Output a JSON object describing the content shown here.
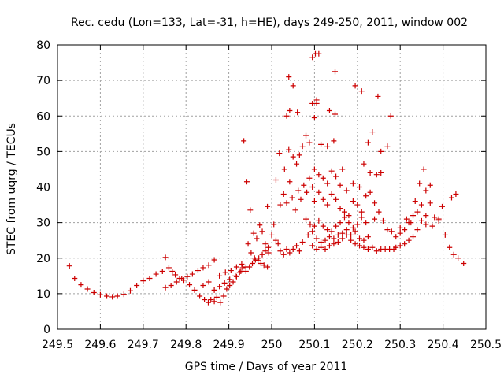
{
  "chart_data": {
    "type": "scatter",
    "title": "Rec. cedu (Lon=133, Lat=-31, h=HE), days 249-250, 2011, window 002",
    "xlabel": "GPS time / Days of year 2011",
    "ylabel": "STEC from uqrg / TECUs",
    "xlim": [
      249.5,
      250.5
    ],
    "ylim": [
      0,
      80
    ],
    "xticks": [
      "249.5",
      "249.6",
      "249.7",
      "249.8",
      "249.9",
      "250",
      "250.1",
      "250.2",
      "250.3",
      "250.4",
      "250.5"
    ],
    "yticks": [
      "0",
      "10",
      "20",
      "30",
      "40",
      "50",
      "60",
      "70",
      "80"
    ],
    "grid": true,
    "marker": "+",
    "color": "#cc0000",
    "points": [
      [
        249.528,
        17.8
      ],
      [
        249.54,
        14.3
      ],
      [
        249.555,
        12.5
      ],
      [
        249.57,
        11.3
      ],
      [
        249.585,
        10.3
      ],
      [
        249.6,
        9.7
      ],
      [
        249.615,
        9.3
      ],
      [
        249.628,
        9.1
      ],
      [
        249.64,
        9.3
      ],
      [
        249.655,
        9.8
      ],
      [
        249.67,
        10.8
      ],
      [
        249.685,
        12.3
      ],
      [
        249.7,
        13.6
      ],
      [
        249.715,
        14.3
      ],
      [
        249.73,
        15.5
      ],
      [
        249.745,
        16.3
      ],
      [
        249.752,
        20.2
      ],
      [
        249.76,
        17.3
      ],
      [
        249.768,
        16.3
      ],
      [
        249.775,
        15.3
      ],
      [
        249.785,
        14.3
      ],
      [
        249.795,
        13.8
      ],
      [
        249.752,
        11.7
      ],
      [
        249.765,
        12.3
      ],
      [
        249.778,
        13.3
      ],
      [
        249.79,
        14.3
      ],
      [
        249.803,
        14.8
      ],
      [
        249.815,
        15.5
      ],
      [
        249.828,
        16.5
      ],
      [
        249.84,
        17.3
      ],
      [
        249.853,
        18.0
      ],
      [
        249.866,
        19.5
      ],
      [
        249.878,
        15.0
      ],
      [
        249.892,
        16.0
      ],
      [
        249.905,
        16.5
      ],
      [
        249.918,
        17.5
      ],
      [
        249.93,
        18.3
      ],
      [
        249.808,
        12.5
      ],
      [
        249.82,
        11.0
      ],
      [
        249.832,
        9.3
      ],
      [
        249.843,
        8.3
      ],
      [
        249.852,
        7.5
      ],
      [
        249.858,
        8.3
      ],
      [
        249.866,
        7.8
      ],
      [
        249.872,
        9.0
      ],
      [
        249.88,
        7.5
      ],
      [
        249.888,
        9.3
      ],
      [
        249.895,
        11.3
      ],
      [
        249.902,
        12.3
      ],
      [
        249.91,
        13.3
      ],
      [
        249.918,
        14.8
      ],
      [
        249.925,
        16.0
      ],
      [
        249.932,
        17.3
      ],
      [
        249.84,
        12.3
      ],
      [
        249.853,
        13.3
      ],
      [
        249.866,
        11.0
      ],
      [
        249.878,
        12.0
      ],
      [
        249.89,
        13.0
      ],
      [
        249.902,
        14.0
      ],
      [
        249.915,
        15.0
      ],
      [
        249.928,
        16.3
      ],
      [
        249.94,
        17.5
      ],
      [
        249.935,
        53.0
      ],
      [
        249.942,
        41.5
      ],
      [
        249.95,
        33.5
      ],
      [
        249.958,
        27.0
      ],
      [
        249.965,
        25.5
      ],
      [
        249.972,
        29.3
      ],
      [
        249.978,
        27.5
      ],
      [
        249.985,
        24.0
      ],
      [
        249.99,
        34.5
      ],
      [
        249.993,
        21.5
      ],
      [
        249.945,
        24.0
      ],
      [
        249.952,
        21.5
      ],
      [
        249.96,
        20.0
      ],
      [
        249.968,
        19.3
      ],
      [
        249.975,
        18.5
      ],
      [
        249.982,
        18.0
      ],
      [
        249.99,
        17.5
      ],
      [
        249.94,
        16.3
      ],
      [
        249.948,
        17.5
      ],
      [
        249.955,
        18.5
      ],
      [
        249.962,
        19.5
      ],
      [
        249.97,
        20.0
      ],
      [
        249.978,
        21.0
      ],
      [
        249.985,
        22.0
      ],
      [
        249.992,
        23.0
      ],
      [
        250.0,
        26.5
      ],
      [
        250.005,
        29.5
      ],
      [
        250.01,
        25.0
      ],
      [
        250.015,
        24.0
      ],
      [
        250.02,
        22.0
      ],
      [
        250.028,
        21.0
      ],
      [
        250.035,
        22.5
      ],
      [
        250.042,
        21.5
      ],
      [
        250.05,
        22.5
      ],
      [
        250.058,
        23.5
      ],
      [
        250.065,
        22.0
      ],
      [
        250.072,
        24.5
      ],
      [
        250.01,
        42.0
      ],
      [
        250.02,
        35.0
      ],
      [
        250.028,
        38.0
      ],
      [
        250.035,
        35.5
      ],
      [
        250.042,
        41.5
      ],
      [
        250.048,
        37.0
      ],
      [
        250.055,
        33.5
      ],
      [
        250.062,
        39.0
      ],
      [
        250.068,
        36.5
      ],
      [
        250.075,
        40.5
      ],
      [
        250.082,
        38.5
      ],
      [
        250.088,
        42.5
      ],
      [
        250.095,
        40.0
      ],
      [
        250.018,
        49.5
      ],
      [
        250.03,
        45.0
      ],
      [
        250.04,
        50.5
      ],
      [
        250.05,
        48.5
      ],
      [
        250.058,
        46.5
      ],
      [
        250.065,
        49.0
      ],
      [
        250.072,
        51.5
      ],
      [
        250.08,
        54.5
      ],
      [
        250.088,
        52.5
      ],
      [
        250.035,
        60.0
      ],
      [
        250.042,
        61.5
      ],
      [
        250.05,
        68.5
      ],
      [
        250.06,
        61.0
      ],
      [
        250.04,
        71.0
      ],
      [
        250.095,
        76.5
      ],
      [
        250.102,
        77.5
      ],
      [
        250.11,
        77.5
      ],
      [
        250.148,
        72.5
      ],
      [
        250.195,
        68.5
      ],
      [
        250.21,
        67.0
      ],
      [
        250.095,
        63.5
      ],
      [
        250.105,
        64.5
      ],
      [
        250.105,
        63.5
      ],
      [
        250.135,
        61.5
      ],
      [
        250.148,
        60.5
      ],
      [
        250.248,
        65.5
      ],
      [
        250.278,
        60.0
      ],
      [
        250.1,
        59.5
      ],
      [
        250.115,
        52.0
      ],
      [
        250.13,
        51.5
      ],
      [
        250.145,
        53.0
      ],
      [
        250.165,
        45.0
      ],
      [
        250.225,
        52.5
      ],
      [
        250.235,
        55.5
      ],
      [
        250.255,
        50.0
      ],
      [
        250.27,
        51.5
      ],
      [
        250.1,
        45.0
      ],
      [
        250.11,
        43.5
      ],
      [
        250.12,
        42.5
      ],
      [
        250.13,
        41.0
      ],
      [
        250.14,
        44.5
      ],
      [
        250.15,
        43.0
      ],
      [
        250.16,
        40.5
      ],
      [
        250.175,
        39.0
      ],
      [
        250.19,
        41.0
      ],
      [
        250.205,
        40.0
      ],
      [
        250.215,
        46.5
      ],
      [
        250.23,
        44.0
      ],
      [
        250.245,
        43.5
      ],
      [
        250.255,
        44.0
      ],
      [
        250.1,
        36.0
      ],
      [
        250.11,
        38.5
      ],
      [
        250.12,
        36.5
      ],
      [
        250.13,
        35.0
      ],
      [
        250.14,
        38.0
      ],
      [
        250.15,
        36.5
      ],
      [
        250.16,
        34.0
      ],
      [
        250.17,
        33.0
      ],
      [
        250.18,
        32.0
      ],
      [
        250.19,
        36.0
      ],
      [
        250.2,
        35.0
      ],
      [
        250.21,
        33.0
      ],
      [
        250.22,
        37.5
      ],
      [
        250.23,
        38.5
      ],
      [
        250.24,
        35.5
      ],
      [
        250.25,
        33.0
      ],
      [
        250.08,
        31.0
      ],
      [
        250.09,
        29.5
      ],
      [
        250.1,
        29.0
      ],
      [
        250.11,
        30.5
      ],
      [
        250.12,
        29.0
      ],
      [
        250.13,
        28.0
      ],
      [
        250.14,
        27.5
      ],
      [
        250.15,
        29.0
      ],
      [
        250.16,
        30.0
      ],
      [
        250.17,
        31.5
      ],
      [
        250.18,
        30.0
      ],
      [
        250.19,
        28.5
      ],
      [
        250.2,
        29.5
      ],
      [
        250.21,
        31.5
      ],
      [
        250.22,
        30.0
      ],
      [
        250.085,
        26.5
      ],
      [
        250.095,
        27.5
      ],
      [
        250.105,
        25.5
      ],
      [
        250.115,
        24.5
      ],
      [
        250.125,
        25.0
      ],
      [
        250.135,
        26.0
      ],
      [
        250.145,
        25.5
      ],
      [
        250.155,
        26.5
      ],
      [
        250.165,
        27.0
      ],
      [
        250.175,
        28.0
      ],
      [
        250.185,
        26.5
      ],
      [
        250.195,
        27.5
      ],
      [
        250.205,
        25.5
      ],
      [
        250.215,
        25.0
      ],
      [
        250.225,
        26.0
      ],
      [
        250.095,
        23.5
      ],
      [
        250.105,
        22.5
      ],
      [
        250.115,
        23.0
      ],
      [
        250.125,
        22.5
      ],
      [
        250.135,
        23.5
      ],
      [
        250.145,
        24.0
      ],
      [
        250.155,
        24.5
      ],
      [
        250.165,
        25.5
      ],
      [
        250.175,
        26.5
      ],
      [
        250.185,
        25.0
      ],
      [
        250.195,
        24.0
      ],
      [
        250.205,
        23.5
      ],
      [
        250.215,
        23.0
      ],
      [
        250.225,
        22.5
      ],
      [
        250.235,
        23.0
      ],
      [
        250.245,
        22.0
      ],
      [
        250.255,
        22.5
      ],
      [
        250.265,
        22.5
      ],
      [
        250.275,
        22.5
      ],
      [
        250.285,
        22.5
      ],
      [
        250.24,
        31.0
      ],
      [
        250.26,
        30.5
      ],
      [
        250.27,
        28.0
      ],
      [
        250.28,
        27.5
      ],
      [
        250.29,
        26.0
      ],
      [
        250.3,
        27.0
      ],
      [
        250.31,
        28.0
      ],
      [
        250.32,
        30.0
      ],
      [
        250.33,
        32.0
      ],
      [
        250.34,
        33.0
      ],
      [
        250.35,
        35.0
      ],
      [
        250.36,
        39.0
      ],
      [
        250.37,
        40.5
      ],
      [
        250.29,
        23.0
      ],
      [
        250.3,
        23.5
      ],
      [
        250.31,
        24.0
      ],
      [
        250.32,
        25.0
      ],
      [
        250.33,
        26.0
      ],
      [
        250.34,
        28.0
      ],
      [
        250.35,
        30.5
      ],
      [
        250.36,
        32.0
      ],
      [
        250.37,
        35.5
      ],
      [
        250.38,
        31.5
      ],
      [
        250.39,
        30.5
      ],
      [
        250.3,
        28.5
      ],
      [
        250.315,
        31.0
      ],
      [
        250.325,
        30.0
      ],
      [
        250.335,
        36.0
      ],
      [
        250.345,
        41.0
      ],
      [
        250.355,
        45.0
      ],
      [
        250.36,
        29.5
      ],
      [
        250.375,
        29.0
      ],
      [
        250.39,
        31.0
      ],
      [
        250.398,
        34.5
      ],
      [
        250.405,
        26.5
      ],
      [
        250.415,
        23.0
      ],
      [
        250.425,
        21.0
      ],
      [
        250.435,
        20.0
      ],
      [
        250.448,
        18.5
      ],
      [
        250.42,
        37.0
      ],
      [
        250.43,
        38.0
      ]
    ]
  }
}
